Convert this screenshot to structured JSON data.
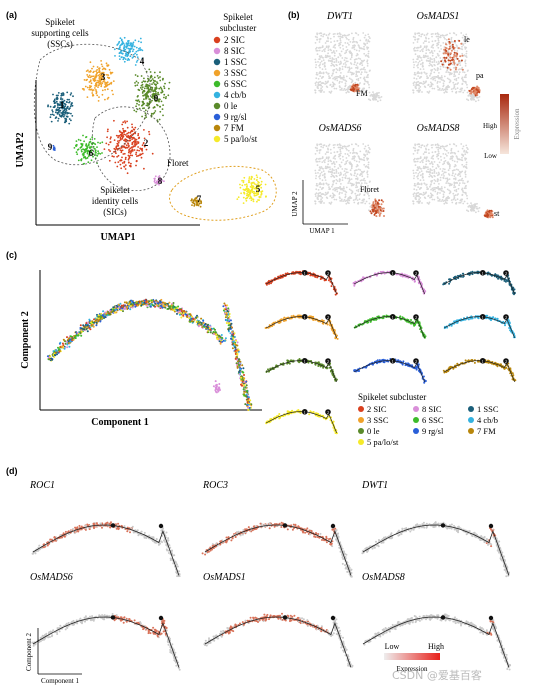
{
  "panels": {
    "a": {
      "label": "(a)",
      "xlabel": "UMAP1",
      "ylabel": "UMAP2",
      "region_ssc": "Spikelet\nsupporting cells\n(SSCs)",
      "region_sic": "Spikelet\nidentity cells\n(SICs)",
      "region_floret": "Floret",
      "legend_title": "Spikelet\nsubcluster",
      "legend": [
        {
          "text": "2 SIC",
          "color": "#d9401f"
        },
        {
          "text": "8 SIC",
          "color": "#d98fd9"
        },
        {
          "text": "1 SSC",
          "color": "#1b5f7a"
        },
        {
          "text": "3 SSC",
          "color": "#f0a22a"
        },
        {
          "text": "6 SSC",
          "color": "#3dbb2a"
        },
        {
          "text": "4 cb/b",
          "color": "#34b2e0"
        },
        {
          "text": "0 le",
          "color": "#5a8a2a"
        },
        {
          "text": "9 rg/sl",
          "color": "#2a5fd8"
        },
        {
          "text": "7 FM",
          "color": "#b8860b"
        },
        {
          "text": "5 pa/lo/st",
          "color": "#f5ea2a"
        }
      ],
      "cluster_labels": [
        "0",
        "1",
        "2",
        "3",
        "4",
        "5",
        "6",
        "7",
        "8",
        "9"
      ]
    },
    "b": {
      "label": "(b)",
      "genes": [
        "DWT1",
        "OsMADS1",
        "OsMADS6",
        "OsMADS8"
      ],
      "annotations": {
        "fm": "FM",
        "le": "le",
        "pa": "pa",
        "floret": "Floret",
        "st": "st"
      },
      "colorbar_high": "High",
      "colorbar_low": "Low",
      "colorbar_title": "Expression",
      "xlabel": "UMAP 1",
      "ylabel": "UMAP 2"
    },
    "c": {
      "label": "(c)",
      "xlabel": "Component 1",
      "ylabel": "Component 2",
      "legend_title": "Spikelet  subcluster",
      "legend": [
        {
          "text": "2 SIC",
          "color": "#d9401f"
        },
        {
          "text": "8 SIC",
          "color": "#d98fd9"
        },
        {
          "text": "1 SSC",
          "color": "#1b5f7a"
        },
        {
          "text": "3 SSC",
          "color": "#f0a22a"
        },
        {
          "text": "6 SSC",
          "color": "#3dbb2a"
        },
        {
          "text": "4 cb/b",
          "color": "#34b2e0"
        },
        {
          "text": "0 le",
          "color": "#5a8a2a"
        },
        {
          "text": "9 rg/sl",
          "color": "#2a5fd8"
        },
        {
          "text": "7 FM",
          "color": "#b8860b"
        },
        {
          "text": "5 pa/lo/st",
          "color": "#f5ea2a"
        }
      ],
      "node_labels": [
        "1",
        "2"
      ]
    },
    "d": {
      "label": "(d)",
      "genes": [
        "ROC1",
        "ROC3",
        "DWT1",
        "OsMADS6",
        "OsMADS1",
        "OsMADS8"
      ],
      "colorbar_low": "Low",
      "colorbar_high": "High",
      "colorbar_title": "Expression",
      "xlabel": "Component 1",
      "ylabel": "Component 2"
    }
  },
  "watermark": "CSDN @爱基百客"
}
